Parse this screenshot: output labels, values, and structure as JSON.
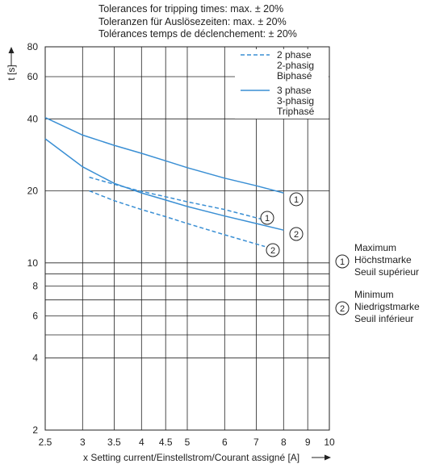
{
  "tolerances": [
    "Tolerances for tripping times: max. ± 20%",
    "Toleranzen für Auslösezeiten: max. ± 20%",
    "Tolérances temps de déclenchement: ± 20%"
  ],
  "chart_data": {
    "type": "line",
    "title": "",
    "xlabel": "x Setting current/Einstellstrom/Courant assigné [A]",
    "ylabel": "t [s]",
    "x_scale": "log",
    "y_scale": "log",
    "xlim": [
      2.5,
      10
    ],
    "ylim": [
      2,
      80
    ],
    "x_ticks": [
      2.5,
      3,
      3.5,
      4,
      4.5,
      5,
      6,
      7,
      8,
      9,
      10
    ],
    "x_tick_labels": [
      "2.5",
      "3",
      "3.5",
      "4",
      "4.5",
      "5",
      "6",
      "7",
      "8",
      "9",
      "10"
    ],
    "y_gridlines": [
      2,
      4,
      5,
      6,
      7,
      8,
      9,
      10,
      20,
      40,
      60,
      80
    ],
    "y_ticks": [
      2,
      4,
      6,
      8,
      10,
      20,
      40,
      60,
      80
    ],
    "y_tick_labels": [
      "2",
      "4",
      "6",
      "8",
      "10",
      "20",
      "40",
      "60",
      "80"
    ],
    "grid": true,
    "legend_position": "top-right",
    "legend": [
      {
        "style": "dashed",
        "lines": [
          "2 phase",
          "2-phasig",
          "Biphasé"
        ]
      },
      {
        "style": "solid",
        "lines": [
          "3 phase",
          "3-phasig",
          "Triphasé"
        ]
      }
    ],
    "series": [
      {
        "style": "solid",
        "marker": "2",
        "x": [
          2.5,
          3,
          3.5,
          4,
          4.5,
          5,
          6,
          7,
          8
        ],
        "y": [
          33,
          25.2,
          21.5,
          19.6,
          18.3,
          17.2,
          15.7,
          14.6,
          13.7
        ]
      },
      {
        "style": "solid",
        "marker": "1",
        "x": [
          2.5,
          3,
          3.5,
          4,
          4.5,
          5,
          6,
          7,
          8
        ],
        "y": [
          40.5,
          34.2,
          31.0,
          28.7,
          26.7,
          25.0,
          22.6,
          21.0,
          19.6
        ]
      },
      {
        "style": "dashed",
        "marker": "1",
        "x": [
          3.1,
          3.5,
          4,
          4.5,
          5,
          6,
          7.3
        ],
        "y": [
          22.8,
          21.3,
          19.9,
          18.9,
          18.0,
          16.7,
          15.1
        ]
      },
      {
        "style": "dashed",
        "marker": "2",
        "x": [
          3.1,
          3.5,
          4,
          4.5,
          5,
          6,
          7.3
        ],
        "y": [
          20.0,
          18.2,
          16.7,
          15.6,
          14.6,
          13.1,
          11.7
        ]
      }
    ],
    "annotations": [
      {
        "marker": "1",
        "lines": [
          "Maximum",
          "Höchstmarke",
          "Seuil supérieur"
        ]
      },
      {
        "marker": "2",
        "lines": [
          "Minimum",
          "Niedrigstmarke",
          "Seuil inférieur"
        ]
      }
    ],
    "colors": {
      "curve": "#3a8fd4",
      "grid": "#222222"
    }
  }
}
